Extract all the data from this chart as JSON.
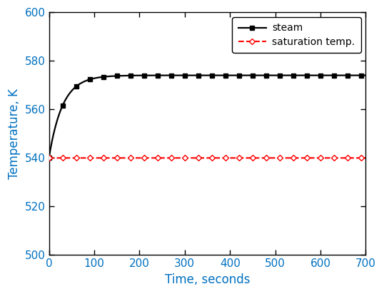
{
  "title": "",
  "xlabel": "Time, seconds",
  "ylabel": "Temperature, K",
  "xlim": [
    0,
    700
  ],
  "ylim": [
    500,
    600
  ],
  "xticks": [
    0,
    100,
    200,
    300,
    400,
    500,
    600,
    700
  ],
  "yticks": [
    500,
    520,
    540,
    560,
    580,
    600
  ],
  "steam_color": "#000000",
  "sat_color": "#ff0000",
  "steam_label": "steam",
  "sat_label": "saturation temp.",
  "sat_value": 540.0,
  "steam_start": 540.0,
  "steam_end": 574.0,
  "time_constant": 30.0,
  "total_time": 700,
  "marker_interval_steam": 30,
  "marker_interval_sat": 30,
  "legend_loc": "upper right",
  "fig_width": 5.38,
  "fig_height": 4.12,
  "dpi": 100,
  "background": "#ffffff",
  "tick_label_color": "#0070c0",
  "axis_label_color": "#0070c0"
}
